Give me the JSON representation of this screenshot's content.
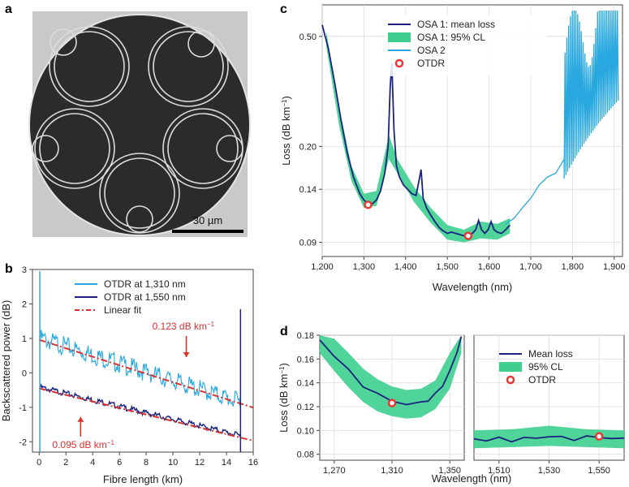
{
  "panels": {
    "a": {
      "label": "a",
      "scale_bar": "30 µm"
    }
  },
  "chart_data": [
    {
      "panel": "b",
      "type": "line",
      "xlabel": "Fibre length (km)",
      "ylabel": "Backscattered power (dB)",
      "xlim": [
        -0.5,
        16
      ],
      "ylim": [
        -2.3,
        3
      ],
      "xticks": [
        0,
        2,
        4,
        6,
        8,
        10,
        12,
        14,
        16
      ],
      "yticks": [
        -2,
        -1,
        0,
        1,
        2,
        3
      ],
      "legend_position": "top-center",
      "series": [
        {
          "name": "OTDR at 1,310 nm",
          "color": "#29a8df",
          "x": [
            0.1,
            15
          ],
          "y": [
            0.95,
            -0.9
          ]
        },
        {
          "name": "OTDR at 1,550 nm",
          "color": "#1a237e",
          "x": [
            0.1,
            15
          ],
          "y": [
            -0.45,
            -1.85
          ]
        },
        {
          "name": "Linear fit",
          "color": "#d8322e",
          "style": "dash-dot",
          "fits": [
            {
              "x": [
                0,
                16
              ],
              "y": [
                0.96,
                -1.01
              ]
            },
            {
              "x": [
                0,
                16
              ],
              "y": [
                -0.45,
                -1.97
              ]
            }
          ]
        }
      ],
      "annotations": [
        {
          "text": "0.123 dB km",
          "sup": "−1",
          "x": 11,
          "y": 0.55,
          "color": "#d8322e"
        },
        {
          "text": "0.095 dB km",
          "sup": "−1",
          "x": 2.8,
          "y": -1.8,
          "color": "#d8322e"
        }
      ]
    },
    {
      "panel": "c",
      "type": "line",
      "xlabel": "Wavelength (nm)",
      "ylabel": "Loss (dB km",
      "ylabel_sup": "−1",
      "ylabel_end": ")",
      "yscale": "log",
      "xlim": [
        1200,
        1920
      ],
      "ylim": [
        0.08,
        0.65
      ],
      "xticks": [
        1200,
        1300,
        1400,
        1500,
        1600,
        1700,
        1800,
        1900
      ],
      "xtick_labels": [
        "1,200",
        "1,300",
        "1,400",
        "1,500",
        "1,600",
        "1,700",
        "1,800",
        "1,900"
      ],
      "yticks": [
        0.09,
        0.14,
        0.2,
        0.5
      ],
      "ytick_labels": [
        "0.09",
        "0.14",
        "0.20",
        "0.50"
      ],
      "legend_position": "top-center",
      "series": [
        {
          "name": "OSA 1: mean loss",
          "color": "#1a237e",
          "x": [
            1200,
            1215,
            1230,
            1245,
            1260,
            1275,
            1290,
            1300,
            1310,
            1320,
            1330,
            1340,
            1350,
            1358,
            1363,
            1367,
            1372,
            1378,
            1385,
            1395,
            1405,
            1415,
            1425,
            1432,
            1437,
            1442,
            1450,
            1460,
            1470,
            1480,
            1490,
            1500,
            1510,
            1520,
            1530,
            1540,
            1550,
            1560,
            1568,
            1575,
            1582,
            1590,
            1598,
            1605,
            1612,
            1620,
            1630,
            1640,
            1650
          ],
          "y": [
            0.55,
            0.45,
            0.34,
            0.25,
            0.19,
            0.155,
            0.135,
            0.128,
            0.124,
            0.124,
            0.128,
            0.138,
            0.16,
            0.2,
            0.33,
            0.4,
            0.23,
            0.17,
            0.155,
            0.145,
            0.14,
            0.135,
            0.133,
            0.15,
            0.165,
            0.13,
            0.12,
            0.113,
            0.107,
            0.102,
            0.099,
            0.097,
            0.098,
            0.097,
            0.096,
            0.095,
            0.095,
            0.097,
            0.1,
            0.108,
            0.1,
            0.097,
            0.1,
            0.107,
            0.1,
            0.098,
            0.097,
            0.1,
            0.104
          ]
        },
        {
          "name": "OSA 1: 95% CL",
          "color": "#3ecf8e",
          "x": [
            1210,
            1240,
            1270,
            1300,
            1330,
            1360,
            1380,
            1420,
            1460,
            1500,
            1540,
            1580,
            1620,
            1650
          ],
          "lower": [
            0.46,
            0.24,
            0.15,
            0.12,
            0.122,
            0.18,
            0.16,
            0.126,
            0.106,
            0.092,
            0.09,
            0.093,
            0.092,
            0.097
          ],
          "upper": [
            0.52,
            0.28,
            0.17,
            0.135,
            0.138,
            0.22,
            0.18,
            0.143,
            0.12,
            0.104,
            0.1,
            0.107,
            0.105,
            0.11
          ]
        },
        {
          "name": "OSA 2",
          "color": "#29a8df",
          "x": [
            1640,
            1660,
            1680,
            1700,
            1720,
            1740,
            1760,
            1780,
            1800,
            1820,
            1840,
            1860,
            1880,
            1900,
            1915
          ],
          "y": [
            0.105,
            0.11,
            0.12,
            0.13,
            0.145,
            0.155,
            0.16,
            0.18,
            0.22,
            0.25,
            0.28,
            0.3,
            0.28,
            0.3,
            0.6
          ]
        },
        {
          "name": "OTDR",
          "color": "#e53935",
          "marker": "ring",
          "x": [
            1310,
            1550
          ],
          "y": [
            0.123,
            0.095
          ]
        }
      ]
    },
    {
      "panel": "d-left",
      "type": "line",
      "xlabel": "",
      "ylabel": "Loss (dB km",
      "ylabel_sup": "−1",
      "ylabel_end": ")",
      "xlim": [
        1260,
        1360
      ],
      "ylim": [
        0.075,
        0.18
      ],
      "xticks": [
        1270,
        1310,
        1350
      ],
      "xtick_labels": [
        "1,270",
        "1,310",
        "1,350"
      ],
      "yticks": [
        0.08,
        0.1,
        0.12,
        0.14,
        0.16,
        0.18
      ],
      "ytick_labels": [
        "0.08",
        "0.10",
        "0.12",
        "0.14",
        "0.16",
        "0.18"
      ],
      "series": [
        {
          "name": "Mean loss",
          "color": "#1a237e",
          "x": [
            1260,
            1270,
            1280,
            1290,
            1300,
            1310,
            1320,
            1330,
            1335,
            1340,
            1345,
            1350,
            1355,
            1358
          ],
          "y": [
            0.176,
            0.163,
            0.15,
            0.138,
            0.13,
            0.125,
            0.122,
            0.123,
            0.126,
            0.13,
            0.138,
            0.15,
            0.165,
            0.18
          ]
        },
        {
          "name": "95% CL",
          "color": "#3ecf8e",
          "x": [
            1260,
            1270,
            1280,
            1290,
            1300,
            1310,
            1320,
            1330,
            1340,
            1350,
            1358
          ],
          "lower": [
            0.165,
            0.15,
            0.136,
            0.124,
            0.116,
            0.112,
            0.11,
            0.111,
            0.118,
            0.135,
            0.165
          ],
          "upper": [
            0.18,
            0.177,
            0.165,
            0.152,
            0.143,
            0.137,
            0.134,
            0.135,
            0.142,
            0.165,
            0.18
          ]
        },
        {
          "name": "OTDR",
          "color": "#e53935",
          "marker": "ring",
          "x": [
            1310
          ],
          "y": [
            0.123
          ]
        }
      ]
    },
    {
      "panel": "d-right",
      "type": "line",
      "xlabel": "Wavelength (nm)",
      "xlim": [
        1500,
        1560
      ],
      "ylim": [
        0.075,
        0.18
      ],
      "xticks": [
        1510,
        1530,
        1550
      ],
      "xtick_labels": [
        "1,510",
        "1,530",
        "1,550"
      ],
      "legend_position": "top-right",
      "series": [
        {
          "name": "Mean loss",
          "color": "#1a237e",
          "x": [
            1500,
            1505,
            1510,
            1515,
            1520,
            1525,
            1530,
            1535,
            1540,
            1545,
            1550,
            1555,
            1560
          ],
          "y": [
            0.093,
            0.092,
            0.093,
            0.092,
            0.093,
            0.094,
            0.095,
            0.094,
            0.093,
            0.094,
            0.095,
            0.093,
            0.093
          ]
        },
        {
          "name": "95% CL",
          "color": "#3ecf8e",
          "x": [
            1500,
            1515,
            1530,
            1545,
            1560
          ],
          "lower": [
            0.085,
            0.086,
            0.087,
            0.086,
            0.085
          ],
          "upper": [
            0.1,
            0.101,
            0.104,
            0.101,
            0.1
          ]
        },
        {
          "name": "OTDR",
          "color": "#e53935",
          "marker": "ring",
          "x": [
            1550
          ],
          "y": [
            0.095
          ]
        }
      ]
    }
  ],
  "labels": {
    "b": "b",
    "c": "c",
    "d": "d"
  }
}
